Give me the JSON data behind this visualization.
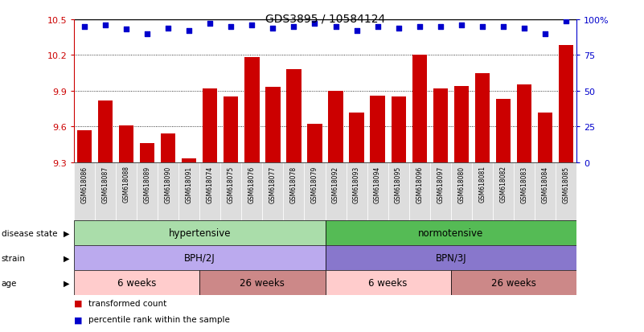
{
  "title": "GDS3895 / 10584124",
  "samples": [
    "GSM618086",
    "GSM618087",
    "GSM618088",
    "GSM618089",
    "GSM618090",
    "GSM618091",
    "GSM618074",
    "GSM618075",
    "GSM618076",
    "GSM618077",
    "GSM618078",
    "GSM618079",
    "GSM618092",
    "GSM618093",
    "GSM618094",
    "GSM618095",
    "GSM618096",
    "GSM618097",
    "GSM618080",
    "GSM618081",
    "GSM618082",
    "GSM618083",
    "GSM618084",
    "GSM618085"
  ],
  "transformed_count": [
    9.57,
    9.82,
    9.61,
    9.46,
    9.54,
    9.33,
    9.92,
    9.85,
    10.18,
    9.93,
    10.08,
    9.62,
    9.9,
    9.72,
    9.86,
    9.85,
    10.2,
    9.92,
    9.94,
    10.05,
    9.83,
    9.95,
    9.72,
    10.28
  ],
  "percentile_rank": [
    95,
    96,
    93,
    90,
    94,
    92,
    97,
    95,
    96,
    94,
    95,
    97,
    95,
    92,
    95,
    94,
    95,
    95,
    96,
    95,
    95,
    94,
    90,
    99
  ],
  "ylim_left": [
    9.3,
    10.5
  ],
  "yticks_left": [
    9.3,
    9.6,
    9.9,
    10.2,
    10.5
  ],
  "ylim_right": [
    0,
    100
  ],
  "yticks_right": [
    0,
    25,
    50,
    75,
    100
  ],
  "bar_color": "#cc0000",
  "dot_color": "#0000cc",
  "label_box_color": "#dddddd",
  "disease_state_colors": [
    "#aaddaa",
    "#55bb55"
  ],
  "disease_state_labels": [
    "hypertensive",
    "normotensive"
  ],
  "disease_state_ranges": [
    [
      0,
      12
    ],
    [
      12,
      24
    ]
  ],
  "strain_colors": [
    "#bbaaee",
    "#8877cc"
  ],
  "strain_labels": [
    "BPH/2J",
    "BPN/3J"
  ],
  "strain_ranges": [
    [
      0,
      12
    ],
    [
      12,
      24
    ]
  ],
  "age_colors": [
    "#ffcccc",
    "#cc8888",
    "#ffcccc",
    "#cc8888"
  ],
  "age_labels": [
    "6 weeks",
    "26 weeks",
    "6 weeks",
    "26 weeks"
  ],
  "age_ranges": [
    [
      0,
      6
    ],
    [
      6,
      12
    ],
    [
      12,
      18
    ],
    [
      18,
      24
    ]
  ],
  "legend_labels": [
    "transformed count",
    "percentile rank within the sample"
  ],
  "legend_colors": [
    "#cc0000",
    "#0000cc"
  ],
  "row_labels": [
    "disease state",
    "strain",
    "age"
  ],
  "arrow_char": "▶"
}
